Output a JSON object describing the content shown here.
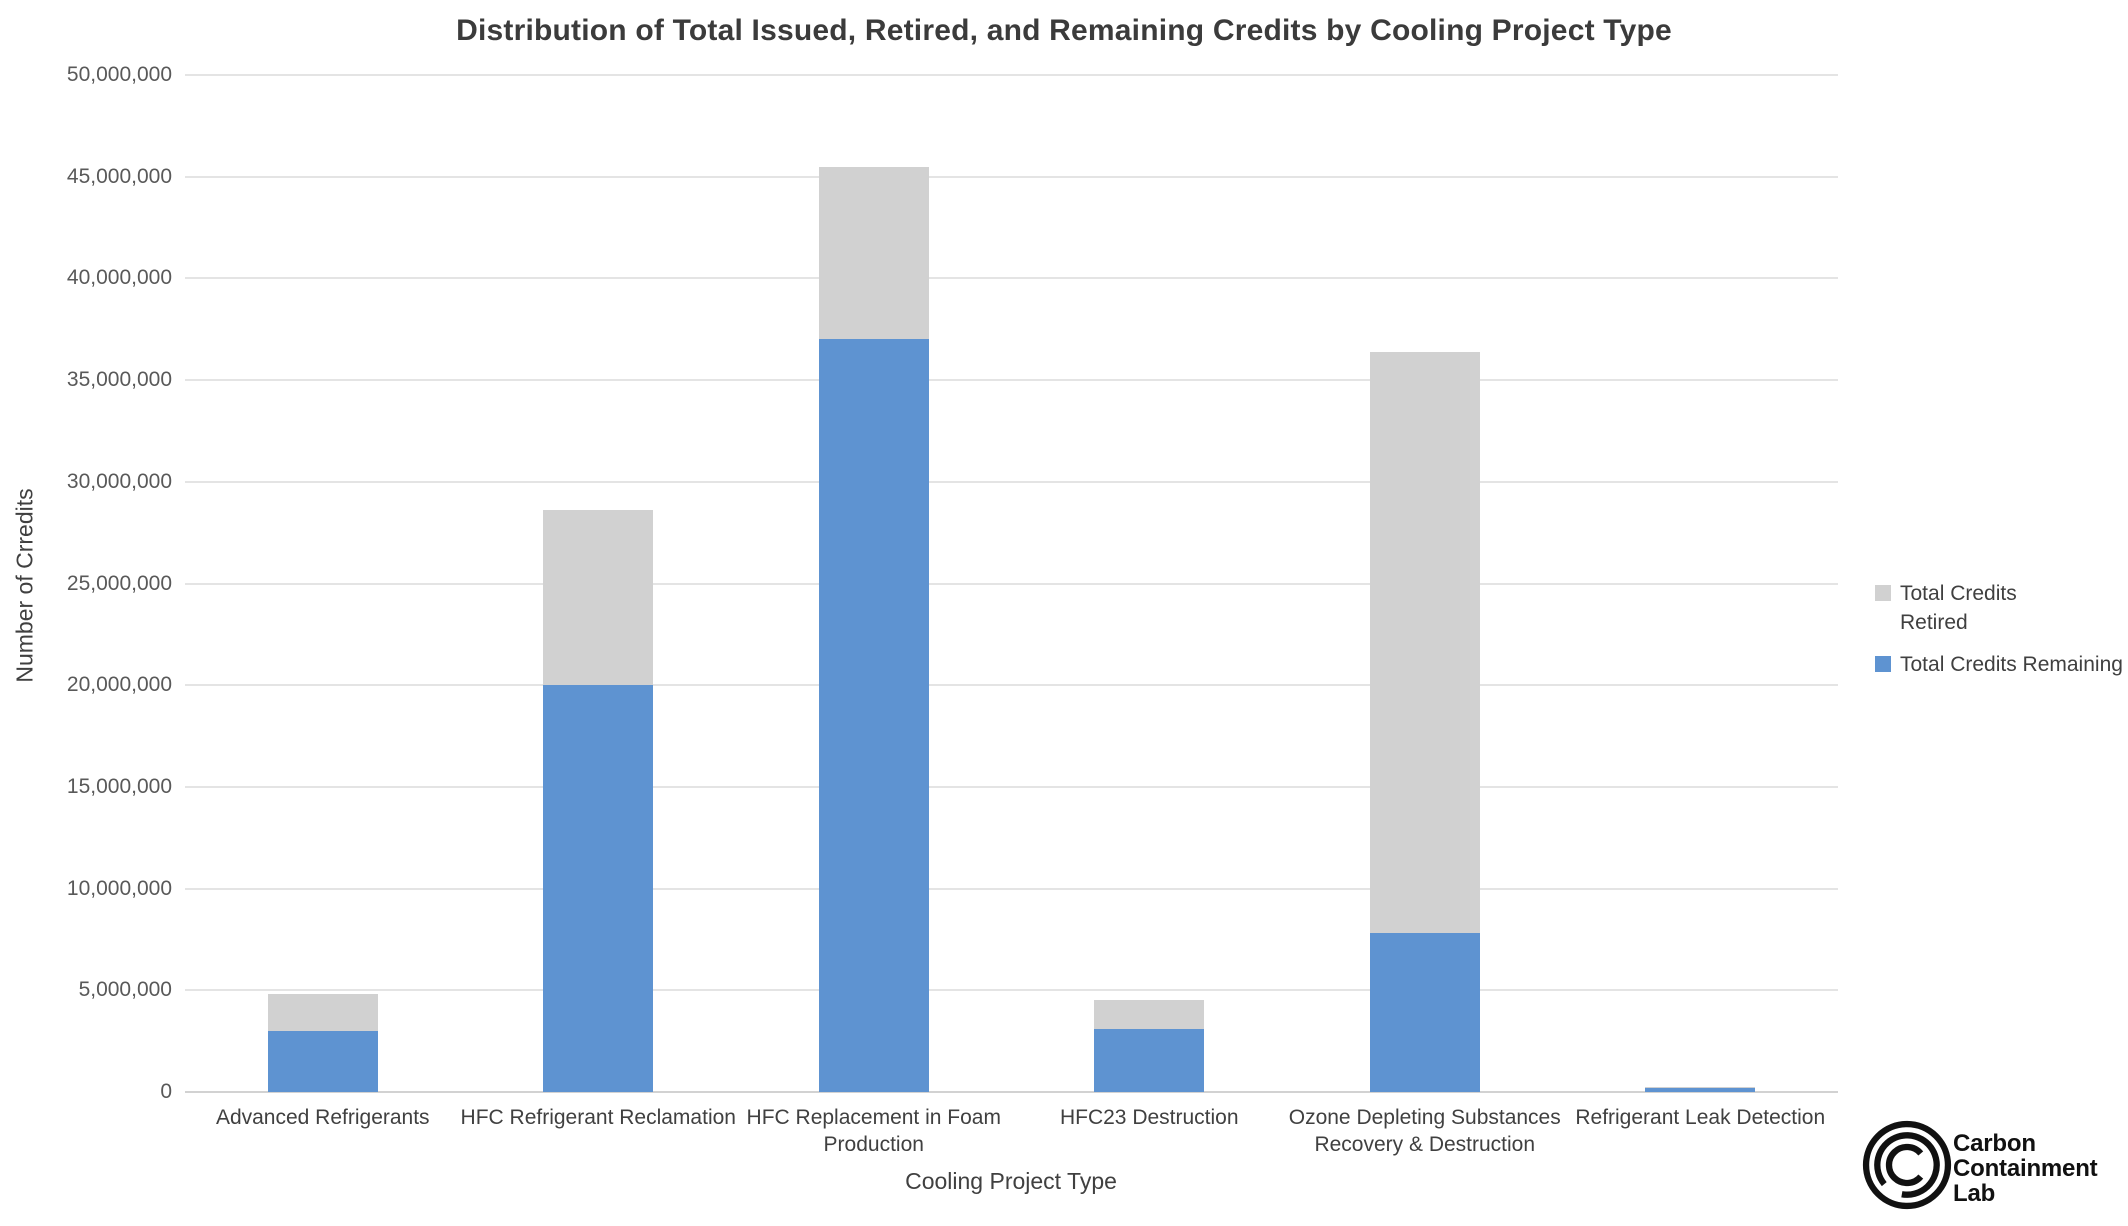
{
  "page": {
    "background": "#ffffff"
  },
  "chart_data": {
    "type": "bar",
    "stacked": true,
    "title": "Distribution of Total Issued, Retired, and Remaining Credits by Cooling Project Type",
    "xlabel": "Cooling Project Type",
    "ylabel": "Number of Crredits",
    "ylim": [
      0,
      50000000
    ],
    "ytick_step": 5000000,
    "ytick_labels": [
      "0",
      "5,000,000",
      "10,000,000",
      "15,000,000",
      "20,000,000",
      "25,000,000",
      "30,000,000",
      "35,000,000",
      "40,000,000",
      "45,000,000",
      "50,000,000"
    ],
    "grid": "horizontal",
    "legend_position": "right",
    "categories": [
      "Advanced Refrigerants",
      "HFC Refrigerant Reclamation",
      "HFC Replacement in Foam Production",
      "HFC23 Destruction",
      "Ozone Depleting Substances Recovery & Destruction",
      "Refrigerant Leak Detection"
    ],
    "series": [
      {
        "name": "Total Credits Remaining",
        "stack_position": "bottom",
        "color": "#5E93D1",
        "values": [
          3000000,
          20000000,
          37000000,
          3100000,
          7800000,
          200000
        ]
      },
      {
        "name": "Total Credits Retired",
        "stack_position": "top",
        "color": "#D1D1D1",
        "values": [
          1800000,
          8600000,
          8500000,
          1400000,
          28600000,
          50000
        ]
      }
    ]
  },
  "legend": {
    "items": [
      {
        "label": "Total Credits Retired",
        "lines": [
          "Total Credits",
          "Retired"
        ],
        "color": "#D1D1D1"
      },
      {
        "label": "Total Credits Remaining",
        "lines": [
          "Total Credits Remaining"
        ],
        "color": "#5E93D1"
      }
    ]
  },
  "logo": {
    "name": "Carbon Containment Lab",
    "lines": [
      "Carbon",
      "Containment",
      "Lab"
    ]
  },
  "colors": {
    "bar_blue": "#5E93D1",
    "bar_gray": "#D1D1D1",
    "gridline": "#E4E4E4",
    "axis_text": "#595959",
    "title_text": "#3B3B3B",
    "label_text": "#404040",
    "logo_black": "#111111"
  }
}
